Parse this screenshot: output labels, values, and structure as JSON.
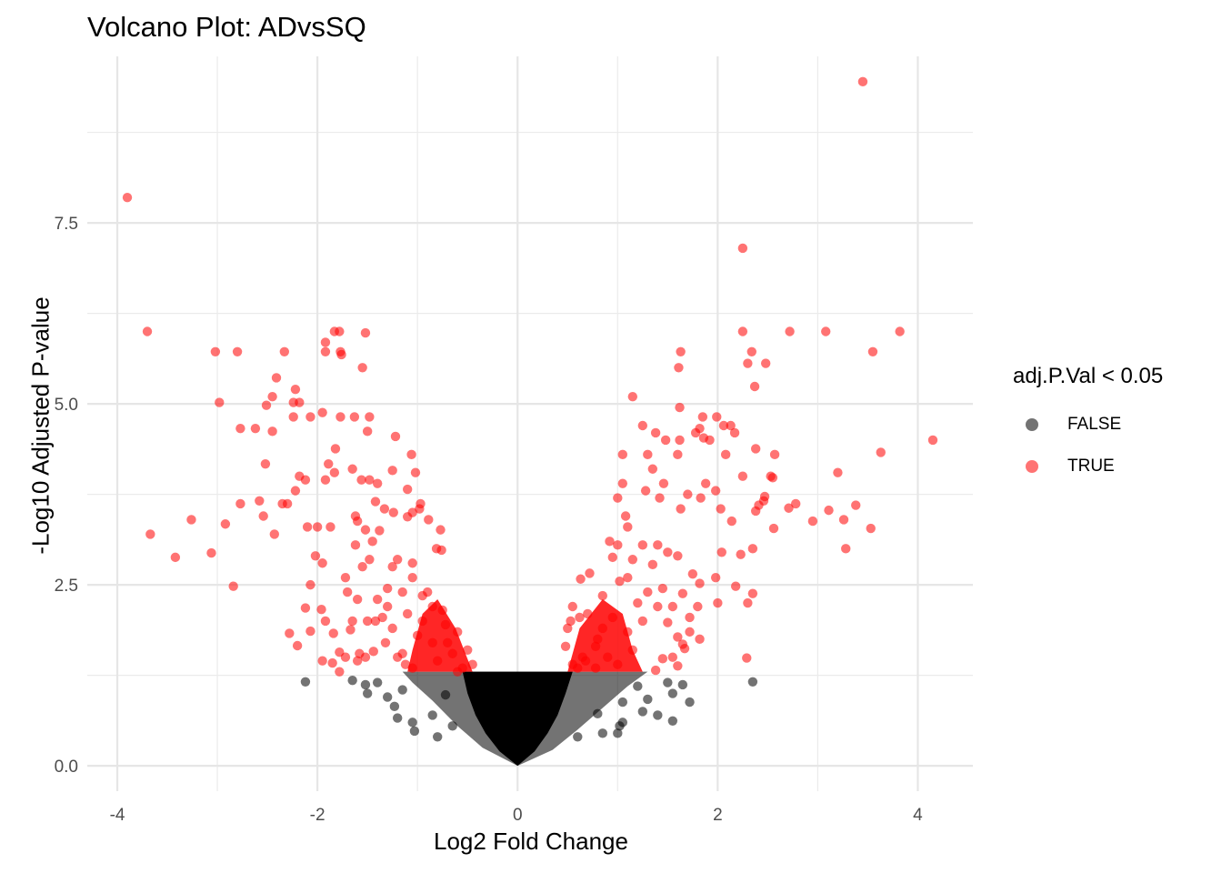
{
  "chart_data": {
    "type": "scatter",
    "title": "Volcano Plot: ADvsSQ",
    "xlabel": "Log2 Fold Change",
    "ylabel": "-Log10 Adjusted P-value",
    "xlim": [
      -4.3,
      4.55
    ],
    "ylim": [
      -0.35,
      9.8
    ],
    "x_ticks": [
      -4,
      -2,
      0,
      2,
      4
    ],
    "x_tick_labels": [
      "-4",
      "-2",
      "0",
      "2",
      "4"
    ],
    "y_ticks": [
      0,
      2.5,
      5,
      7.5
    ],
    "y_tick_labels": [
      "0.0",
      "2.5",
      "5.0",
      "7.5"
    ],
    "grid": true,
    "threshold_y": 1.3,
    "legend": {
      "title": "adj.P.Val < 0.05",
      "placement": "right",
      "entries": [
        {
          "label": "FALSE",
          "color": "#000000"
        },
        {
          "label": "TRUE",
          "color": "#ff0000"
        }
      ]
    },
    "series": [
      {
        "name": "TRUE",
        "color": "#ff0000",
        "points": [
          [
            3.45,
            9.45
          ],
          [
            -3.9,
            7.85
          ],
          [
            2.25,
            7.15
          ],
          [
            -3.7,
            6.0
          ],
          [
            3.82,
            6.0
          ],
          [
            3.08,
            6.0
          ],
          [
            2.72,
            6.0
          ],
          [
            2.25,
            6.0
          ],
          [
            -1.83,
            6.0
          ],
          [
            -1.78,
            6.0
          ],
          [
            -1.52,
            5.98
          ],
          [
            -3.02,
            5.72
          ],
          [
            -2.8,
            5.72
          ],
          [
            -2.33,
            5.72
          ],
          [
            -1.92,
            5.85
          ],
          [
            -1.92,
            5.72
          ],
          [
            -1.77,
            5.72
          ],
          [
            -1.76,
            5.68
          ],
          [
            -1.55,
            5.5
          ],
          [
            1.63,
            5.72
          ],
          [
            1.61,
            5.5
          ],
          [
            2.34,
            5.72
          ],
          [
            2.3,
            5.56
          ],
          [
            2.48,
            5.56
          ],
          [
            3.55,
            5.72
          ],
          [
            2.37,
            5.24
          ],
          [
            -2.41,
            5.36
          ],
          [
            -2.45,
            5.1
          ],
          [
            -2.22,
            5.2
          ],
          [
            -2.98,
            5.02
          ],
          [
            -2.24,
            5.02
          ],
          [
            -2.51,
            4.98
          ],
          [
            -2.18,
            5.02
          ],
          [
            -1.95,
            4.88
          ],
          [
            -1.77,
            4.82
          ],
          [
            -1.63,
            4.82
          ],
          [
            -2.24,
            4.82
          ],
          [
            -2.07,
            4.82
          ],
          [
            -2.62,
            4.66
          ],
          [
            -2.45,
            4.62
          ],
          [
            -1.48,
            4.82
          ],
          [
            -1.5,
            4.62
          ],
          [
            -1.82,
            4.38
          ],
          [
            -1.89,
            4.17
          ],
          [
            -1.83,
            4.05
          ],
          [
            -1.92,
            3.95
          ],
          [
            -1.65,
            4.1
          ],
          [
            -1.56,
            3.95
          ],
          [
            -1.48,
            3.95
          ],
          [
            -2.52,
            4.17
          ],
          [
            -2.77,
            4.66
          ],
          [
            -2.18,
            4.0
          ],
          [
            -2.12,
            3.95
          ],
          [
            -2.22,
            3.8
          ],
          [
            -2.35,
            3.62
          ],
          [
            -2.77,
            3.62
          ],
          [
            -2.58,
            3.66
          ],
          [
            -2.54,
            3.45
          ],
          [
            -2.43,
            3.2
          ],
          [
            -2.3,
            3.62
          ],
          [
            -3.67,
            3.2
          ],
          [
            -3.26,
            3.4
          ],
          [
            -2.92,
            3.34
          ],
          [
            -3.06,
            2.94
          ],
          [
            -3.42,
            2.88
          ],
          [
            -2.84,
            2.48
          ],
          [
            -2.1,
            3.3
          ],
          [
            -2.0,
            3.3
          ],
          [
            -1.87,
            3.3
          ],
          [
            -1.62,
            3.45
          ],
          [
            -1.6,
            3.38
          ],
          [
            -1.52,
            3.26
          ],
          [
            -1.33,
            3.55
          ],
          [
            -1.24,
            3.5
          ],
          [
            -1.1,
            3.44
          ],
          [
            -1.05,
            3.5
          ],
          [
            -0.98,
            3.55
          ],
          [
            -0.89,
            3.4
          ],
          [
            -0.77,
            3.26
          ],
          [
            -0.81,
            3.0
          ],
          [
            -0.76,
            2.98
          ],
          [
            -1.1,
            3.82
          ],
          [
            -0.97,
            3.62
          ],
          [
            -1.02,
            4.05
          ],
          [
            -1.06,
            4.3
          ],
          [
            -1.22,
            4.55
          ],
          [
            -1.25,
            4.08
          ],
          [
            -1.4,
            3.9
          ],
          [
            -1.42,
            3.65
          ],
          [
            -2.07,
            2.5
          ],
          [
            -2.12,
            2.18
          ],
          [
            -1.96,
            2.16
          ],
          [
            -2.07,
            1.86
          ],
          [
            -2.28,
            1.83
          ],
          [
            -2.2,
            1.66
          ],
          [
            -1.84,
            1.83
          ],
          [
            -1.67,
            1.88
          ],
          [
            -1.72,
            1.5
          ],
          [
            -1.6,
            1.45
          ],
          [
            -1.78,
            1.57
          ],
          [
            -1.58,
            1.55
          ],
          [
            -1.85,
            1.42
          ],
          [
            -1.78,
            1.3
          ],
          [
            -1.95,
            1.45
          ],
          [
            -1.2,
            1.5
          ],
          [
            -1.12,
            1.4
          ],
          [
            -1.52,
            1.5
          ],
          [
            -1.44,
            1.58
          ],
          [
            -1.65,
            2.0
          ],
          [
            -1.4,
            2.3
          ],
          [
            -1.5,
            2.0
          ],
          [
            -1.3,
            2.2
          ],
          [
            -1.7,
            2.4
          ],
          [
            -1.92,
            2.0
          ],
          [
            -1.72,
            2.6
          ],
          [
            -1.6,
            2.3
          ],
          [
            -1.55,
            2.75
          ],
          [
            -1.48,
            2.85
          ],
          [
            -1.95,
            2.8
          ],
          [
            -2.02,
            2.9
          ],
          [
            -1.62,
            3.05
          ],
          [
            -1.45,
            3.1
          ],
          [
            -1.38,
            3.25
          ],
          [
            2.25,
            4.0
          ],
          [
            2.06,
            4.7
          ],
          [
            1.99,
            4.82
          ],
          [
            1.85,
            4.82
          ],
          [
            1.62,
            4.95
          ],
          [
            1.25,
            4.7
          ],
          [
            1.15,
            5.1
          ],
          [
            2.38,
            4.38
          ],
          [
            2.57,
            4.3
          ],
          [
            3.63,
            4.33
          ],
          [
            4.15,
            4.5
          ],
          [
            2.53,
            4.0
          ],
          [
            2.55,
            3.98
          ],
          [
            2.47,
            3.72
          ],
          [
            2.41,
            3.6
          ],
          [
            2.46,
            3.66
          ],
          [
            2.38,
            3.52
          ],
          [
            2.13,
            4.7
          ],
          [
            2.17,
            4.6
          ],
          [
            1.92,
            4.5
          ],
          [
            1.86,
            4.53
          ],
          [
            1.82,
            4.66
          ],
          [
            2.08,
            4.3
          ],
          [
            1.78,
            4.6
          ],
          [
            1.62,
            4.5
          ],
          [
            1.6,
            4.3
          ],
          [
            1.48,
            4.5
          ],
          [
            1.38,
            4.6
          ],
          [
            1.3,
            4.3
          ],
          [
            1.05,
            4.3
          ],
          [
            1.05,
            3.9
          ],
          [
            1.0,
            3.7
          ],
          [
            1.08,
            3.45
          ],
          [
            1.35,
            4.1
          ],
          [
            1.28,
            3.8
          ],
          [
            1.46,
            3.9
          ],
          [
            1.7,
            3.75
          ],
          [
            1.88,
            3.9
          ],
          [
            1.83,
            3.7
          ],
          [
            1.98,
            3.8
          ],
          [
            2.03,
            3.55
          ],
          [
            1.63,
            3.55
          ],
          [
            1.42,
            3.7
          ],
          [
            1.1,
            3.3
          ],
          [
            1.0,
            3.05
          ],
          [
            0.92,
            3.1
          ],
          [
            0.95,
            2.88
          ],
          [
            0.72,
            2.66
          ],
          [
            0.63,
            2.58
          ],
          [
            0.55,
            2.2
          ],
          [
            0.53,
            2.0
          ],
          [
            0.62,
            2.05
          ],
          [
            0.5,
            1.9
          ],
          [
            0.48,
            1.65
          ],
          [
            2.95,
            3.38
          ],
          [
            2.78,
            3.62
          ],
          [
            2.71,
            3.56
          ],
          [
            3.2,
            4.05
          ],
          [
            3.38,
            3.6
          ],
          [
            3.26,
            3.4
          ],
          [
            3.11,
            3.53
          ],
          [
            3.53,
            3.28
          ],
          [
            3.28,
            3.0
          ],
          [
            2.56,
            3.28
          ],
          [
            2.23,
            2.92
          ],
          [
            2.35,
            3.0
          ],
          [
            2.14,
            3.38
          ],
          [
            2.04,
            2.95
          ],
          [
            1.98,
            2.6
          ],
          [
            2.0,
            2.25
          ],
          [
            2.18,
            2.48
          ],
          [
            2.35,
            2.38
          ],
          [
            2.3,
            2.25
          ],
          [
            2.29,
            1.49
          ],
          [
            1.75,
            2.65
          ],
          [
            1.82,
            2.52
          ],
          [
            1.8,
            2.2
          ],
          [
            1.65,
            2.38
          ],
          [
            1.72,
            2.05
          ],
          [
            1.72,
            1.85
          ],
          [
            1.82,
            1.75
          ],
          [
            1.65,
            1.68
          ],
          [
            1.6,
            1.78
          ],
          [
            1.45,
            1.48
          ],
          [
            1.6,
            1.38
          ],
          [
            1.67,
            1.62
          ],
          [
            1.55,
            1.5
          ],
          [
            1.38,
            1.32
          ],
          [
            1.5,
            1.98
          ],
          [
            1.55,
            2.2
          ],
          [
            1.45,
            2.45
          ],
          [
            1.35,
            2.78
          ],
          [
            1.5,
            2.95
          ],
          [
            1.4,
            3.05
          ],
          [
            1.6,
            2.9
          ],
          [
            1.25,
            3.05
          ],
          [
            1.15,
            2.85
          ],
          [
            1.1,
            2.6
          ],
          [
            0.78,
            1.65
          ],
          [
            0.68,
            1.45
          ],
          [
            0.6,
            1.35
          ],
          [
            0.85,
            1.9
          ],
          [
            -0.9,
            2.4
          ],
          [
            -1.05,
            2.6
          ],
          [
            -1.2,
            2.85
          ],
          [
            -0.85,
            2.2
          ],
          [
            -0.72,
            1.95
          ],
          [
            -0.95,
            2.0
          ],
          [
            -1.15,
            2.4
          ],
          [
            -1.3,
            2.45
          ],
          [
            -1.25,
            2.75
          ],
          [
            -1.05,
            2.8
          ],
          [
            -0.95,
            2.35
          ],
          [
            -0.75,
            2.15
          ],
          [
            -0.6,
            1.85
          ],
          [
            -0.5,
            1.6
          ],
          [
            -0.45,
            1.4
          ],
          [
            -0.55,
            1.35
          ],
          [
            -1.0,
            1.8
          ],
          [
            -1.25,
            1.9
          ],
          [
            -1.35,
            2.05
          ],
          [
            -0.65,
            1.55
          ],
          [
            -0.85,
            1.7
          ],
          [
            -1.1,
            2.1
          ],
          [
            0.85,
            2.35
          ],
          [
            1.02,
            2.55
          ],
          [
            1.2,
            2.25
          ],
          [
            0.95,
            2.05
          ],
          [
            0.8,
            1.75
          ],
          [
            0.65,
            1.5
          ],
          [
            0.9,
            1.5
          ],
          [
            1.1,
            1.85
          ],
          [
            1.25,
            2.0
          ],
          [
            1.3,
            2.4
          ],
          [
            1.15,
            1.6
          ],
          [
            1.0,
            1.4
          ],
          [
            0.78,
            1.35
          ],
          [
            0.55,
            1.4
          ],
          [
            -0.8,
            1.45
          ],
          [
            -0.7,
            1.7
          ],
          [
            -1.15,
            1.55
          ],
          [
            -1.42,
            2.0
          ],
          [
            -1.32,
            1.7
          ],
          [
            -1.05,
            1.35
          ],
          [
            -0.6,
            1.3
          ],
          [
            0.7,
            2.1
          ],
          [
            1.4,
            2.2
          ]
        ]
      },
      {
        "name": "FALSE",
        "color": "#000000",
        "points": [
          [
            -2.12,
            1.16
          ],
          [
            2.35,
            1.16
          ],
          [
            -1.65,
            1.18
          ],
          [
            -1.52,
            1.12
          ],
          [
            -1.4,
            1.15
          ],
          [
            -1.5,
            1.0
          ],
          [
            -1.3,
            0.95
          ],
          [
            -1.23,
            0.82
          ],
          [
            -1.15,
            1.05
          ],
          [
            -1.2,
            0.66
          ],
          [
            -1.05,
            0.6
          ],
          [
            -1.03,
            0.48
          ],
          [
            -0.85,
            0.7
          ],
          [
            -0.8,
            0.4
          ],
          [
            -0.72,
            0.98
          ],
          [
            -0.65,
            0.55
          ],
          [
            1.65,
            1.12
          ],
          [
            1.55,
            1.0
          ],
          [
            1.72,
            0.88
          ],
          [
            1.55,
            0.62
          ],
          [
            1.3,
            0.92
          ],
          [
            1.25,
            0.75
          ],
          [
            1.2,
            1.1
          ],
          [
            1.05,
            0.88
          ],
          [
            1.02,
            0.55
          ],
          [
            1.05,
            0.6
          ],
          [
            1.0,
            0.45
          ],
          [
            0.8,
            0.72
          ],
          [
            0.85,
            0.45
          ],
          [
            0.6,
            0.4
          ],
          [
            1.5,
            1.15
          ],
          [
            1.4,
            0.7
          ]
        ]
      }
    ]
  }
}
